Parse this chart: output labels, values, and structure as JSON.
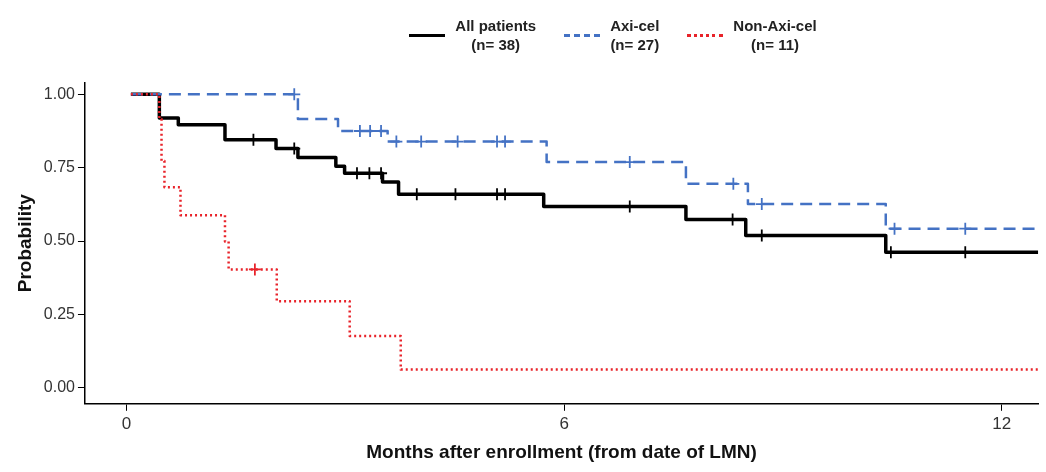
{
  "chart_data": {
    "type": "step",
    "xlabel": "Months after enrollment (from date of LMN)",
    "ylabel": "Probability",
    "xlim": [
      -0.57,
      12.5
    ],
    "xticks": [
      0,
      6,
      12
    ],
    "ylim": [
      -0.055,
      1.04
    ],
    "yticks": [
      {
        "value": 0,
        "label": "0.00"
      },
      {
        "value": 0.25,
        "label": "0.25"
      },
      {
        "value": 0.5,
        "label": "0.50"
      },
      {
        "value": 0.75,
        "label": "0.75"
      },
      {
        "value": 1,
        "label": "1.00"
      }
    ],
    "grid": false,
    "legend": "top",
    "series": [
      {
        "name": "All patients\n(n= 38)",
        "color": "#000000",
        "line_style": "solid",
        "x": [
          0.06,
          0.45,
          0.71,
          1.35,
          2.05,
          2.35,
          2.87,
          2.99,
          3.51,
          3.73,
          5.72,
          7.67,
          8.49,
          10.41,
          12.5
        ],
        "values": [
          1,
          0.919,
          0.896,
          0.845,
          0.815,
          0.785,
          0.755,
          0.731,
          0.701,
          0.659,
          0.618,
          0.573,
          0.519,
          0.462,
          0.462
        ]
      },
      {
        "name": "Axi-cel\n(n= 27)",
        "color": "#4472c4",
        "line_style": "dashed",
        "x": [
          0.06,
          2.35,
          2.9,
          3.58,
          5.76,
          7.67,
          8.52,
          10.41,
          12.5
        ],
        "values": [
          1,
          0.916,
          0.875,
          0.839,
          0.769,
          0.695,
          0.626,
          0.542,
          0.542
        ]
      },
      {
        "name": "Non-Axi-cel\n(n= 11)",
        "color": "#e8232a",
        "line_style": "dotted",
        "x": [
          0.06,
          0.45,
          0.48,
          0.52,
          0.74,
          1.35,
          1.4,
          2.06,
          3.06,
          3.76,
          12.5
        ],
        "values": [
          1,
          0.916,
          0.773,
          0.683,
          0.588,
          0.498,
          0.403,
          0.295,
          0.176,
          0.062,
          0.062
        ]
      },
      {
        "type": "scatter",
        "marker": "cross",
        "color": "#000000",
        "x": [
          1.74,
          2.3,
          3.16,
          3.33,
          3.49,
          3.98,
          4.51,
          5.08,
          5.19,
          6.9,
          8.31,
          8.71,
          10.48,
          11.5
        ],
        "values": [
          0.845,
          0.815,
          0.731,
          0.731,
          0.731,
          0.659,
          0.659,
          0.659,
          0.659,
          0.618,
          0.573,
          0.519,
          0.462,
          0.462
        ]
      },
      {
        "type": "scatter",
        "marker": "cross",
        "color": "#4472c4",
        "x": [
          2.3,
          3.2,
          3.34,
          3.49,
          3.7,
          4.04,
          4.54,
          5.08,
          5.19,
          6.9,
          8.32,
          8.71,
          10.53,
          11.5
        ],
        "values": [
          1,
          0.875,
          0.875,
          0.875,
          0.839,
          0.839,
          0.839,
          0.839,
          0.839,
          0.769,
          0.695,
          0.626,
          0.542,
          0.542
        ]
      },
      {
        "type": "scatter",
        "marker": "cross",
        "color": "#e8232a",
        "x": [
          1.76
        ],
        "values": [
          0.403
        ]
      }
    ]
  }
}
